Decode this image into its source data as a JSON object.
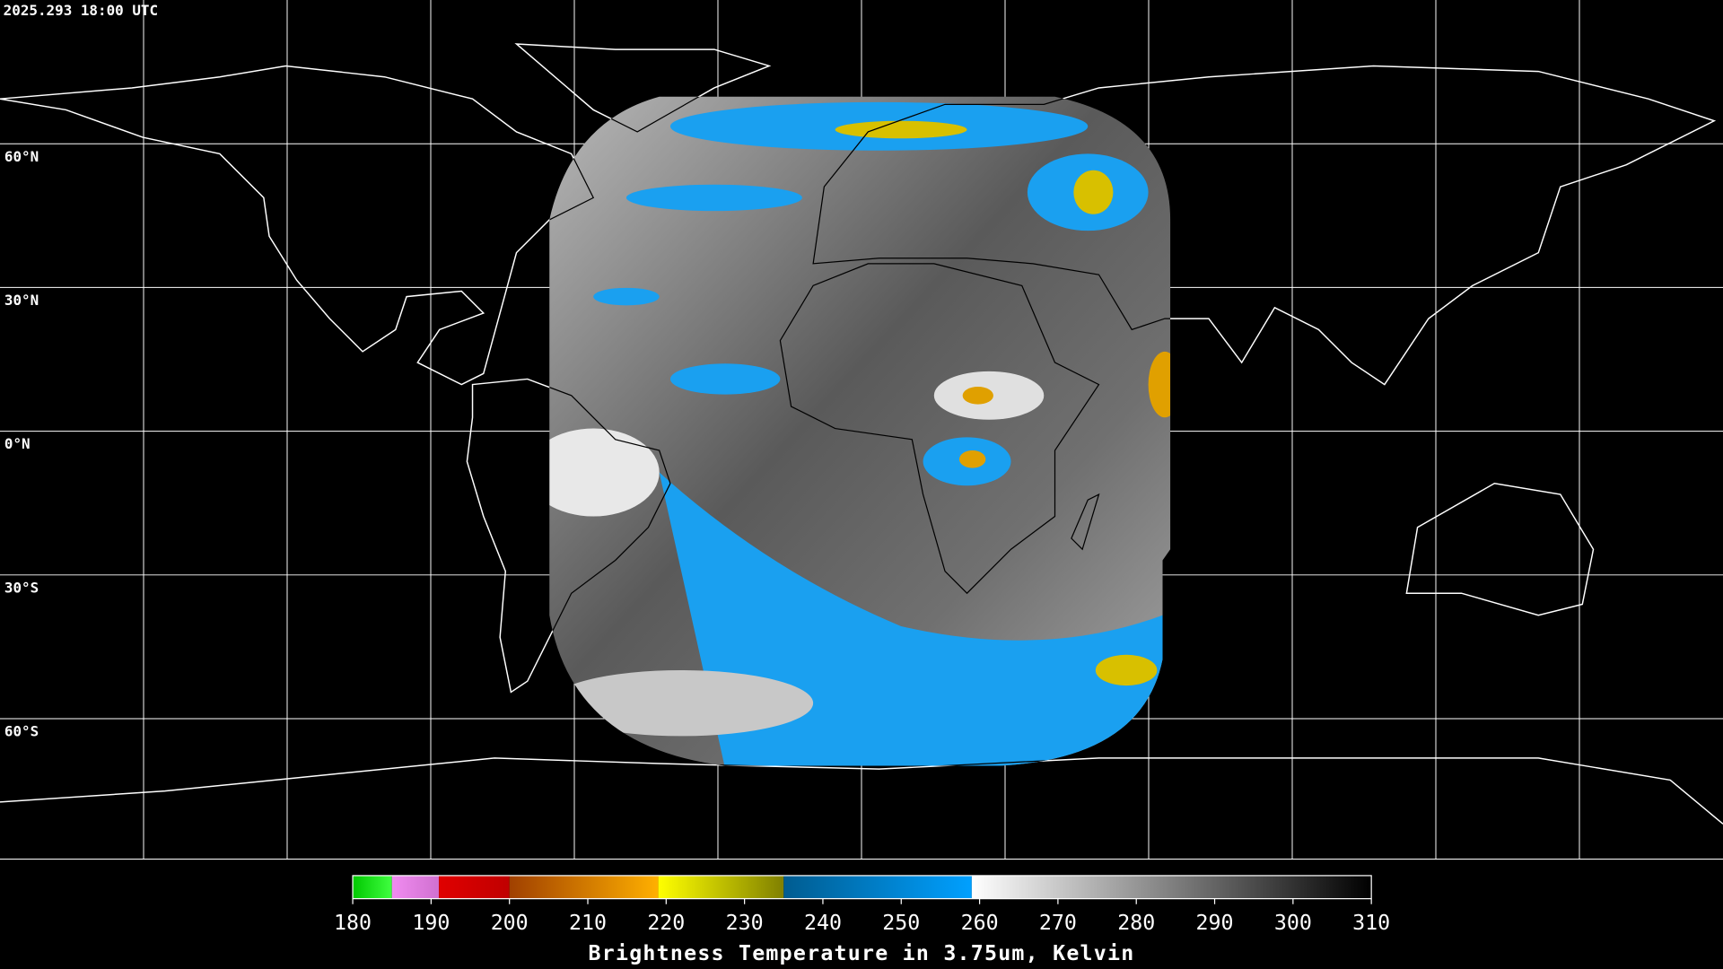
{
  "header": {
    "timestamp": "2025.293 18:00 UTC"
  },
  "map": {
    "lat_range": [
      90,
      -90
    ],
    "lat_grid": [
      {
        "value": 60,
        "label": "60°N"
      },
      {
        "value": 30,
        "label": "30°N"
      },
      {
        "value": 0,
        "label": "0°N"
      },
      {
        "value": -30,
        "label": "30°S"
      },
      {
        "value": -60,
        "label": "60°S"
      }
    ]
  },
  "colorbar": {
    "title": "Brightness Temperature in 3.75um, Kelvin",
    "range": [
      180,
      310
    ],
    "ticks": [
      180,
      190,
      200,
      210,
      220,
      230,
      240,
      250,
      260,
      270,
      280,
      290,
      300,
      310
    ],
    "segments": [
      {
        "from": 180,
        "to": 185,
        "colors": [
          "#00c800",
          "#40ff40"
        ]
      },
      {
        "from": 185,
        "to": 191,
        "colors": [
          "#f08cf0",
          "#d070d0"
        ]
      },
      {
        "from": 191,
        "to": 200,
        "colors": [
          "#e00000",
          "#c00000"
        ]
      },
      {
        "from": 200,
        "to": 219,
        "colors": [
          "#a04000",
          "#ffb000"
        ]
      },
      {
        "from": 219,
        "to": 235,
        "colors": [
          "#ffff00",
          "#808000"
        ]
      },
      {
        "from": 235,
        "to": 259,
        "colors": [
          "#005c90",
          "#00a0ff"
        ]
      },
      {
        "from": 259,
        "to": 310,
        "colors": [
          "#ffffff",
          "#000000"
        ]
      }
    ]
  }
}
